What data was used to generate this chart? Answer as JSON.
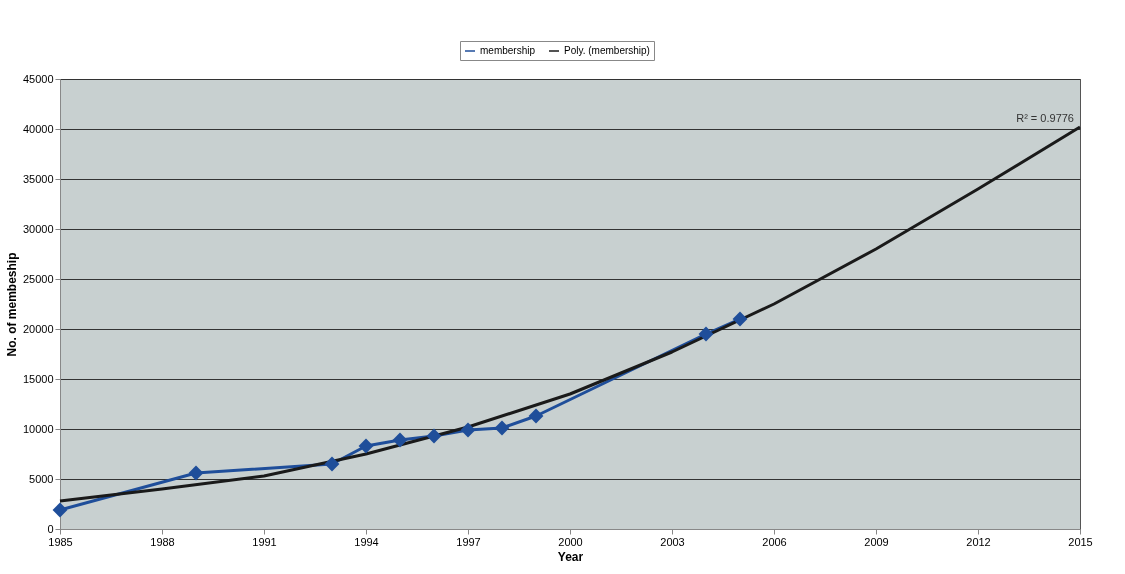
{
  "chart_data": {
    "type": "line",
    "xlabel": "Year",
    "ylabel": "No. of membeship",
    "x": [
      1985,
      1989,
      1993,
      1994,
      1995,
      1996,
      1997,
      1998,
      1999,
      2004,
      2005
    ],
    "series": [
      {
        "name": "membership",
        "color": "#1f4e9a",
        "marker": "diamond",
        "values": [
          1900,
          5600,
          6500,
          8300,
          8900,
          9300,
          9900,
          10100,
          11300,
          19500,
          21000
        ]
      },
      {
        "name": "Poly. (membership)",
        "color": "#1a1a1a",
        "marker": "none",
        "x": [
          1985,
          1988,
          1991,
          1994,
          1997,
          2000,
          2003,
          2006,
          2009,
          2012,
          2015
        ],
        "values": [
          2800,
          4000,
          5300,
          7500,
          10200,
          13500,
          17700,
          22500,
          28000,
          34000,
          40200
        ]
      }
    ],
    "xlim": [
      1985,
      2015
    ],
    "xticks": [
      1985,
      1988,
      1991,
      1994,
      1997,
      2000,
      2003,
      2006,
      2009,
      2012,
      2015
    ],
    "ylim": [
      0,
      45000
    ],
    "yticks": [
      0,
      5000,
      10000,
      15000,
      20000,
      25000,
      30000,
      35000,
      40000,
      45000
    ],
    "grid": "y",
    "legend": "top",
    "annotations": [
      {
        "text": "R² = 0.9776",
        "x": 2015,
        "y": 40000
      }
    ]
  }
}
